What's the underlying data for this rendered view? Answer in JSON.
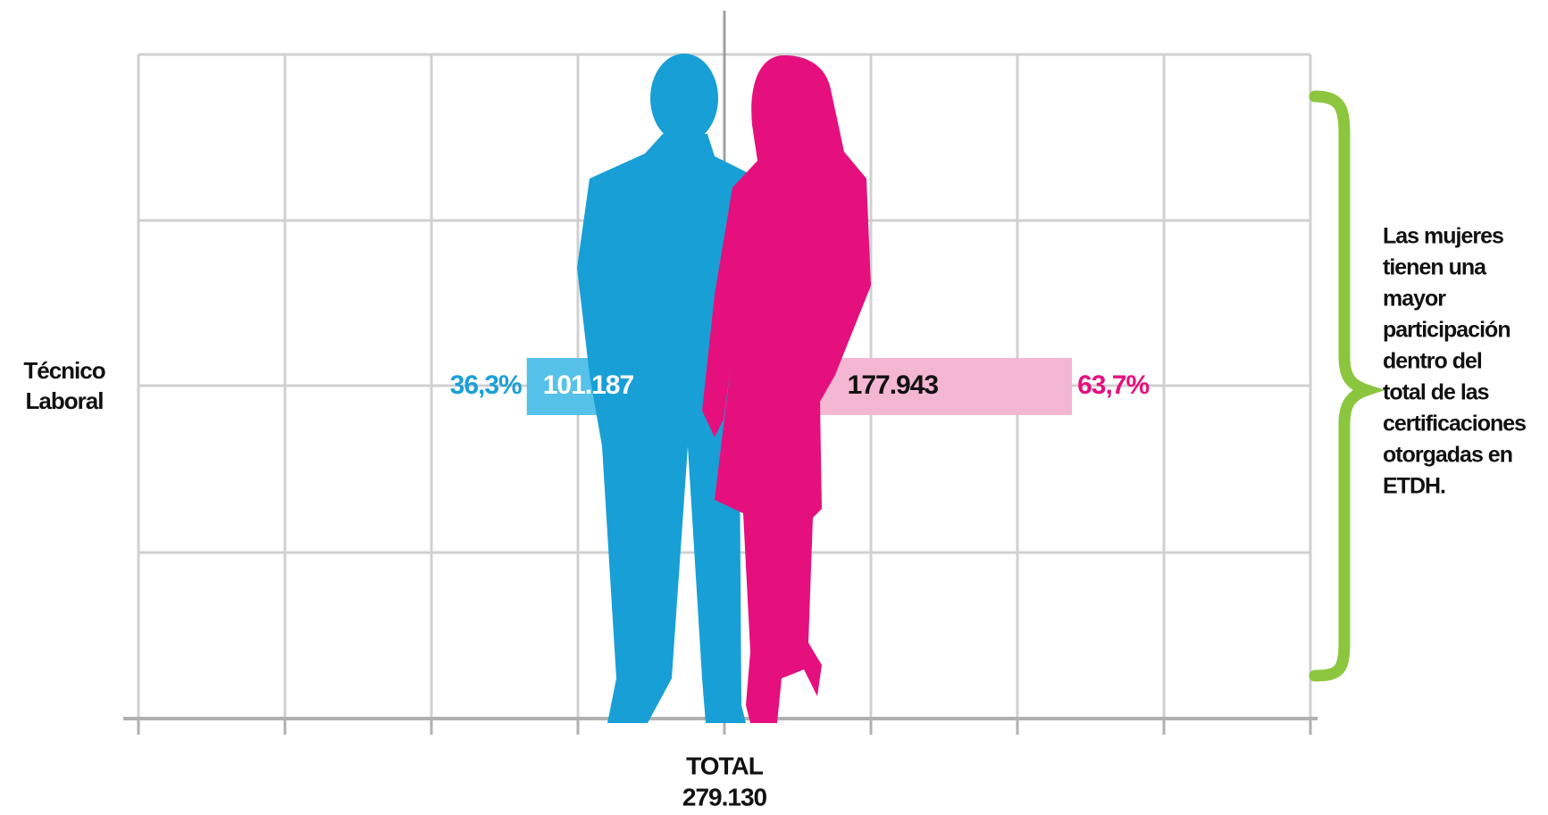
{
  "chart_data": {
    "type": "diverging-bar",
    "categories": [
      "Técnico Laboral"
    ],
    "series": [
      {
        "color": "#56c1e9",
        "text_color": "#1a9fd6",
        "label_color": "#ffffff",
        "side": "left",
        "values": [
          101187
        ],
        "value_labels": [
          "101.187"
        ],
        "percent": [
          36.3
        ],
        "percent_labels": [
          "36,3%"
        ]
      },
      {
        "color": "#f3b6d3",
        "text_color": "#e5107e",
        "label_color": "#111111",
        "side": "right",
        "values": [
          177943
        ],
        "value_labels": [
          "177.943"
        ],
        "percent": [
          63.7
        ],
        "percent_labels": [
          "63,7%"
        ]
      }
    ],
    "xlim": [
      -300000,
      300000
    ],
    "xticks": [
      -300000,
      -225000,
      -150000,
      -75000,
      0,
      75000,
      150000,
      225000,
      300000
    ],
    "grid": true,
    "total_title": "TOTAL",
    "total": 279130,
    "total_label": "279.130",
    "annotation": [
      "Las mujeres",
      "tienen una",
      "mayor",
      "participación",
      "dentro del",
      "total de las",
      "certificaciones",
      "otorgadas en",
      "ETDH."
    ],
    "annotation_color": "#8cc63f"
  }
}
